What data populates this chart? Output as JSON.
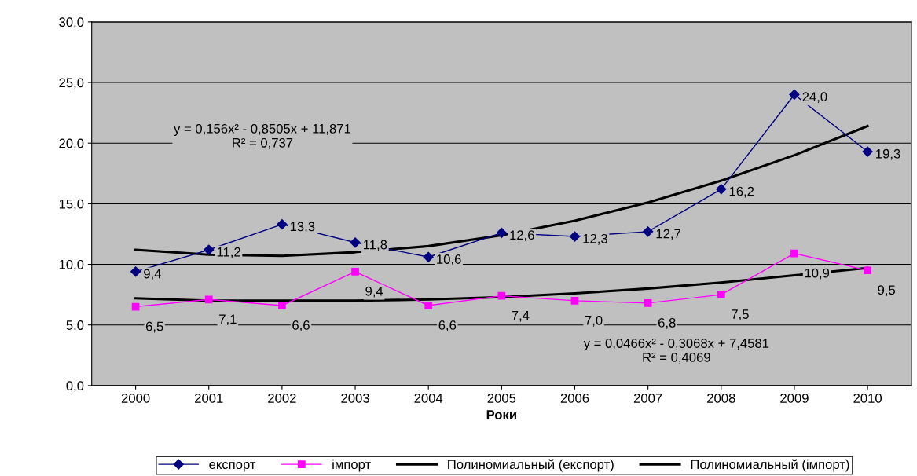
{
  "chart_data": {
    "type": "line",
    "xlabel": "Роки",
    "categories": [
      "2000",
      "2001",
      "2002",
      "2003",
      "2004",
      "2005",
      "2006",
      "2007",
      "2008",
      "2009",
      "2010"
    ],
    "series": [
      {
        "name": "експорт",
        "color": "#000080",
        "marker": "diamond",
        "values": [
          9.4,
          11.2,
          13.3,
          11.8,
          10.6,
          12.6,
          12.3,
          12.7,
          16.2,
          24.0,
          19.3
        ],
        "value_labels": [
          "9,4",
          "11,2",
          "13,3",
          "11,8",
          "10,6",
          "12,6",
          "12,3",
          "12,7",
          "16,2",
          "24,0",
          "19,3"
        ]
      },
      {
        "name": "імпорт",
        "color": "#ff00ff",
        "marker": "square",
        "values": [
          6.5,
          7.1,
          6.6,
          9.4,
          6.6,
          7.4,
          7.0,
          6.8,
          7.5,
          10.9,
          9.5
        ],
        "value_labels": [
          "6,5",
          "7,1",
          "6,6",
          "9,4",
          "6,6",
          "7,4",
          "7,0",
          "6,8",
          "7,5",
          "10,9",
          "9,5"
        ]
      },
      {
        "name": "Полиномиальный (експорт)",
        "color": "#000000",
        "marker": "none",
        "values": [
          11.2,
          10.8,
          10.7,
          11.0,
          11.5,
          12.4,
          13.6,
          15.1,
          16.9,
          19.0,
          21.4
        ]
      },
      {
        "name": "Полиномиальный (імпорт)",
        "color": "#000000",
        "marker": "none",
        "values": [
          7.2,
          7.0,
          7.0,
          7.0,
          7.1,
          7.3,
          7.6,
          8.0,
          8.5,
          9.1,
          9.7
        ]
      }
    ],
    "ylim": [
      0,
      30
    ],
    "yticks": [
      {
        "value": 0,
        "label": "0,0"
      },
      {
        "value": 5,
        "label": "5,0"
      },
      {
        "value": 10,
        "label": "10,0"
      },
      {
        "value": 15,
        "label": "15,0"
      },
      {
        "value": 20,
        "label": "20,0"
      },
      {
        "value": 25,
        "label": "25,0"
      },
      {
        "value": 30,
        "label": "30,0"
      }
    ],
    "grid": "y",
    "legend": "bottom",
    "annotations": [
      "y = 0,156x² - 0,8505x + 11,871\nR² = 0,737",
      "y = 0,0466x² - 0,3068x + 7,4581\nR² = 0,4069"
    ]
  }
}
